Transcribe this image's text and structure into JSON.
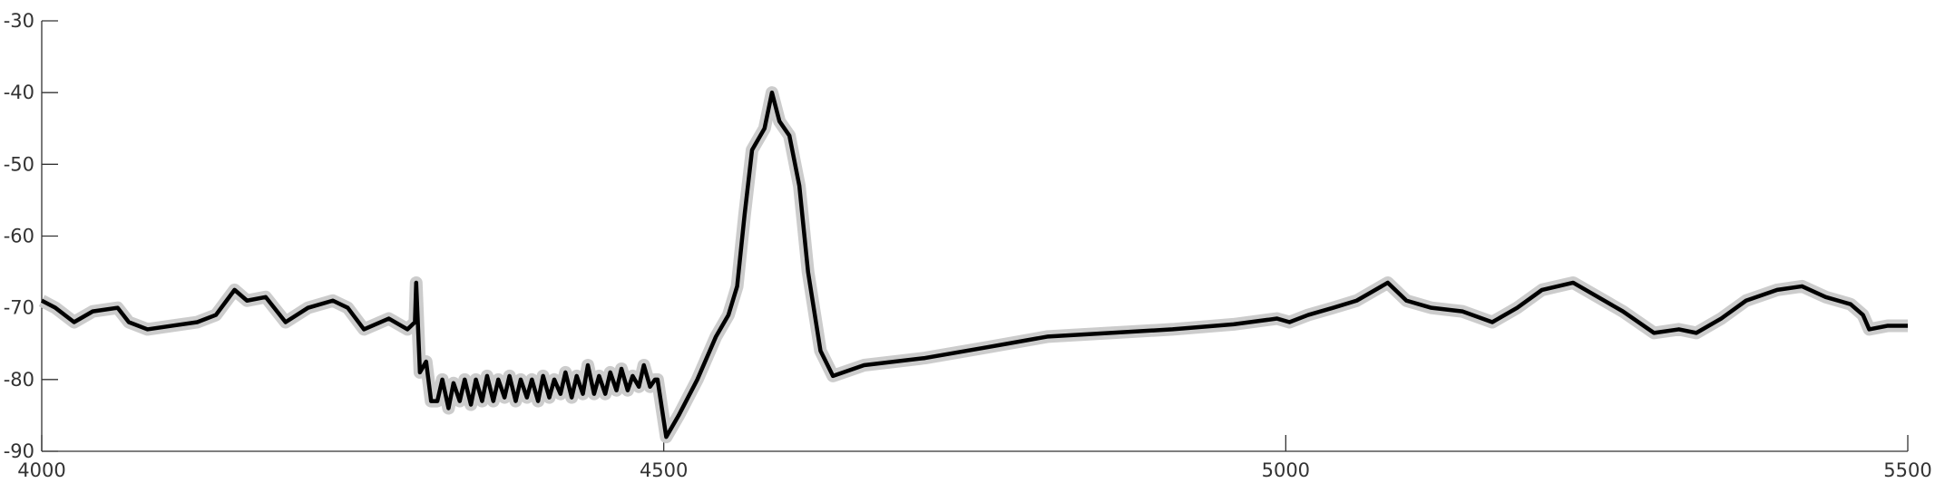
{
  "chart_data": {
    "type": "line",
    "x": [
      4000,
      4011,
      4026,
      4041,
      4061,
      4070,
      4085,
      4105,
      4125,
      4140,
      4155,
      4165,
      4180,
      4196,
      4214,
      4234,
      4246,
      4259,
      4279,
      4294,
      4300,
      4301,
      4304,
      4309,
      4313,
      4318,
      4322,
      4327,
      4331,
      4336,
      4340,
      4345,
      4349,
      4354,
      4358,
      4363,
      4367,
      4372,
      4376,
      4381,
      4385,
      4390,
      4394,
      4399,
      4403,
      4408,
      4412,
      4417,
      4421,
      4426,
      4430,
      4435,
      4439,
      4444,
      4448,
      4453,
      4457,
      4462,
      4466,
      4471,
      4475,
      4480,
      4484,
      4489,
      4493,
      4495,
      4502,
      4512,
      4527,
      4542,
      4552,
      4559,
      4565,
      4571,
      4581,
      4587,
      4593,
      4601,
      4609,
      4616,
      4626,
      4636,
      4661,
      4710,
      4760,
      4809,
      4859,
      4909,
      4958,
      4993,
      5003,
      5018,
      5038,
      5057,
      5082,
      5097,
      5117,
      5142,
      5166,
      5186,
      5206,
      5231,
      5246,
      5271,
      5296,
      5316,
      5330,
      5350,
      5370,
      5395,
      5415,
      5434,
      5454,
      5464,
      5469,
      5484,
      5500
    ],
    "series": [
      {
        "color": "#000000",
        "band_color": "#cccccc",
        "values": [
          -69,
          -70,
          -72,
          -70.5,
          -70,
          -72,
          -73,
          -72.5,
          -72,
          -71,
          -67.5,
          -69,
          -68.5,
          -72,
          -70,
          -69,
          -70,
          -73,
          -71.5,
          -73,
          -72,
          -66.5,
          -79,
          -77.5,
          -83,
          -83,
          -80,
          -84,
          -80.5,
          -83,
          -80,
          -83.5,
          -80,
          -83,
          -79.5,
          -83,
          -80,
          -82.5,
          -79.5,
          -83,
          -80,
          -82.5,
          -80,
          -83,
          -79.5,
          -82.5,
          -80,
          -82,
          -79,
          -82.5,
          -79.5,
          -82,
          -78,
          -82,
          -79.5,
          -82,
          -79,
          -81.5,
          -78.5,
          -81.5,
          -79.5,
          -81,
          -78,
          -81,
          -80,
          -80,
          -88,
          -85,
          -80,
          -74,
          -71,
          -67,
          -57,
          -48,
          -45,
          -40,
          -44,
          -46,
          -53,
          -65,
          -76,
          -79.5,
          -78,
          -77,
          -75.5,
          -74,
          -73.5,
          -73,
          -72.3,
          -71.5,
          -72,
          -71,
          -70,
          -69,
          -66.5,
          -69,
          -70,
          -70.5,
          -72,
          -70,
          -67.5,
          -66.5,
          -68,
          -70.5,
          -73.5,
          -73,
          -73.5,
          -71.5,
          -69,
          -67.5,
          -67,
          -68.5,
          -69.5,
          -71,
          -73,
          -72.5,
          -72.5
        ]
      }
    ],
    "xlim": [
      4000,
      5500
    ],
    "xticks": [
      4000,
      4500,
      5000,
      5500
    ],
    "ylim": [
      -90,
      -30
    ],
    "yticks": [
      -30,
      -40,
      -50,
      -60,
      -70,
      -80,
      -90
    ]
  }
}
